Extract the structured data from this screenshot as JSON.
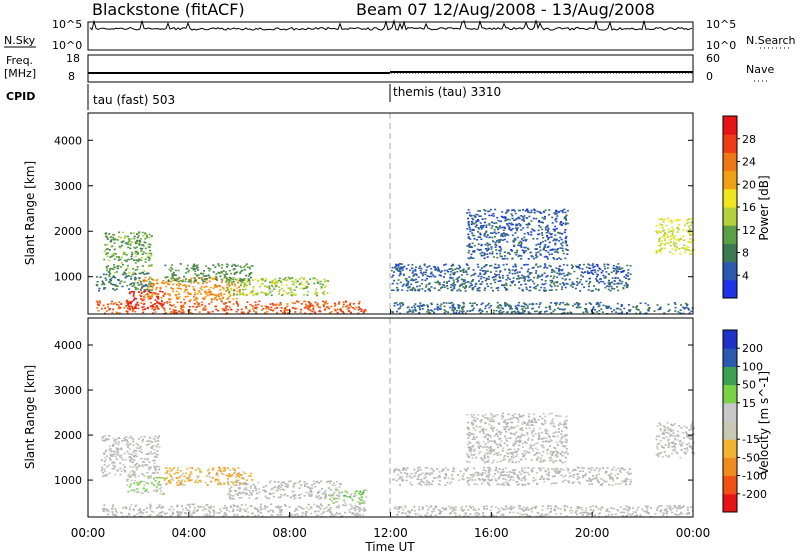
{
  "header": {
    "station": "Blackstone (fitACF)",
    "beam_dates": "Beam 07  12/Aug/2008 - 13/Aug/2008"
  },
  "left_labels": {
    "nsky": "N.Sky",
    "freq": "Freq.",
    "freq_unit": "[MHz]",
    "cpid": "CPID"
  },
  "right_labels": {
    "nsearch": "N.Search",
    "nave": "Nave"
  },
  "noise_panel": {
    "left_ticks": [
      "10^5",
      "10^0"
    ],
    "right_ticks": [
      "10^5",
      "10^0"
    ]
  },
  "freq_panel": {
    "left_ticks": [
      "18",
      "8"
    ],
    "right_ticks": [
      "60",
      "0"
    ]
  },
  "cpid_segments": [
    {
      "label": "tau (fast) 503",
      "start_hour": 0
    },
    {
      "label": "themis (tau) 3310",
      "start_hour": 12
    }
  ],
  "time_axis": {
    "title": "Time UT",
    "ticks": [
      "00:00",
      "04:00",
      "08:00",
      "12:00",
      "16:00",
      "20:00",
      "00:00"
    ],
    "tick_hours": [
      0,
      4,
      8,
      12,
      16,
      20,
      24
    ]
  },
  "colors": {
    "power": [
      "#1e32e6",
      "#2a5ab0",
      "#3c7850",
      "#5aa046",
      "#b4d23c",
      "#f0e61e",
      "#f0a014",
      "#f07814",
      "#f03c14",
      "#e61414"
    ],
    "velocity": [
      "#e61414",
      "#f05014",
      "#f08c1e",
      "#f0b432",
      "#c8c8b4",
      "#c8c8c8",
      "#78d246",
      "#3ca050",
      "#2a5ab0",
      "#1e32c8"
    ],
    "ground_scatter": "#b4b4b4"
  },
  "chart_data": [
    {
      "type": "heatmap",
      "name": "power",
      "ylabel": "Slant Range [km]",
      "ylim": [
        180,
        4600
      ],
      "y_ticks": [
        1000,
        2000,
        3000,
        4000
      ],
      "xlim_hours": [
        0,
        24
      ],
      "colorbar": {
        "label": "Power [dB]",
        "range": [
          0,
          32
        ],
        "ticks": [
          "4",
          "8",
          "12",
          "16",
          "20",
          "24",
          "28"
        ],
        "tick_values": [
          4,
          8,
          12,
          16,
          20,
          24,
          28
        ]
      },
      "regions": [
        {
          "t": [
            0.3,
            11.0
          ],
          "r": [
            200,
            480
          ],
          "v": 26
        },
        {
          "t": [
            1.5,
            3.0
          ],
          "r": [
            300,
            700
          ],
          "v": 30
        },
        {
          "t": [
            2.0,
            6.0
          ],
          "r": [
            500,
            1000
          ],
          "v": 22
        },
        {
          "t": [
            3.0,
            6.5
          ],
          "r": [
            900,
            1300
          ],
          "v": 10
        },
        {
          "t": [
            5.5,
            9.5
          ],
          "r": [
            600,
            1000
          ],
          "v": 14
        },
        {
          "t": [
            0.6,
            2.5
          ],
          "r": [
            1100,
            2000
          ],
          "v": 11
        },
        {
          "t": [
            0.3,
            2.5
          ],
          "r": [
            700,
            1100
          ],
          "v": 8
        },
        {
          "t": [
            12.0,
            21.5
          ],
          "r": [
            1000,
            1300
          ],
          "v": 5
        },
        {
          "t": [
            12.0,
            21.5
          ],
          "r": [
            700,
            1000
          ],
          "v": 6
        },
        {
          "t": [
            12.0,
            24.0
          ],
          "r": [
            200,
            450
          ],
          "v": 6
        },
        {
          "t": [
            15.0,
            19.0
          ],
          "r": [
            1400,
            2500
          ],
          "v": 5
        },
        {
          "t": [
            22.5,
            24.0
          ],
          "r": [
            1500,
            2300
          ],
          "v": 16
        }
      ]
    },
    {
      "type": "heatmap",
      "name": "velocity",
      "ylabel": "Slant Range [km]",
      "ylim": [
        180,
        4600
      ],
      "y_ticks": [
        1000,
        2000,
        3000,
        4000
      ],
      "xlim_hours": [
        0,
        24
      ],
      "colorbar": {
        "label": "Velocity [m s^-1]",
        "range": [
          -250,
          250
        ],
        "ticks": [
          "200",
          "100",
          "50",
          "15",
          "-15",
          "-50",
          "-100",
          "-200"
        ],
        "tick_values": [
          200,
          100,
          50,
          15,
          -15,
          -50,
          -100,
          -200
        ]
      },
      "regions": [
        {
          "t": [
            0.5,
            11.0
          ],
          "r": [
            200,
            480
          ],
          "v": 0
        },
        {
          "t": [
            3.0,
            6.5
          ],
          "r": [
            900,
            1300
          ],
          "v": -70
        },
        {
          "t": [
            0.5,
            2.8
          ],
          "r": [
            1100,
            2000
          ],
          "v": 0
        },
        {
          "t": [
            1.5,
            3.0
          ],
          "r": [
            700,
            1100
          ],
          "v": 40
        },
        {
          "t": [
            5.5,
            10.0
          ],
          "r": [
            600,
            1000
          ],
          "v": 0
        },
        {
          "t": [
            9.5,
            11.0
          ],
          "r": [
            500,
            800
          ],
          "v": 60
        },
        {
          "t": [
            12.0,
            21.5
          ],
          "r": [
            900,
            1300
          ],
          "v": 0
        },
        {
          "t": [
            12.0,
            24.0
          ],
          "r": [
            200,
            450
          ],
          "v": 0
        },
        {
          "t": [
            15.0,
            19.0
          ],
          "r": [
            1400,
            2500
          ],
          "v": 0
        },
        {
          "t": [
            22.5,
            24.0
          ],
          "r": [
            1500,
            2300
          ],
          "v": 0
        }
      ]
    }
  ]
}
